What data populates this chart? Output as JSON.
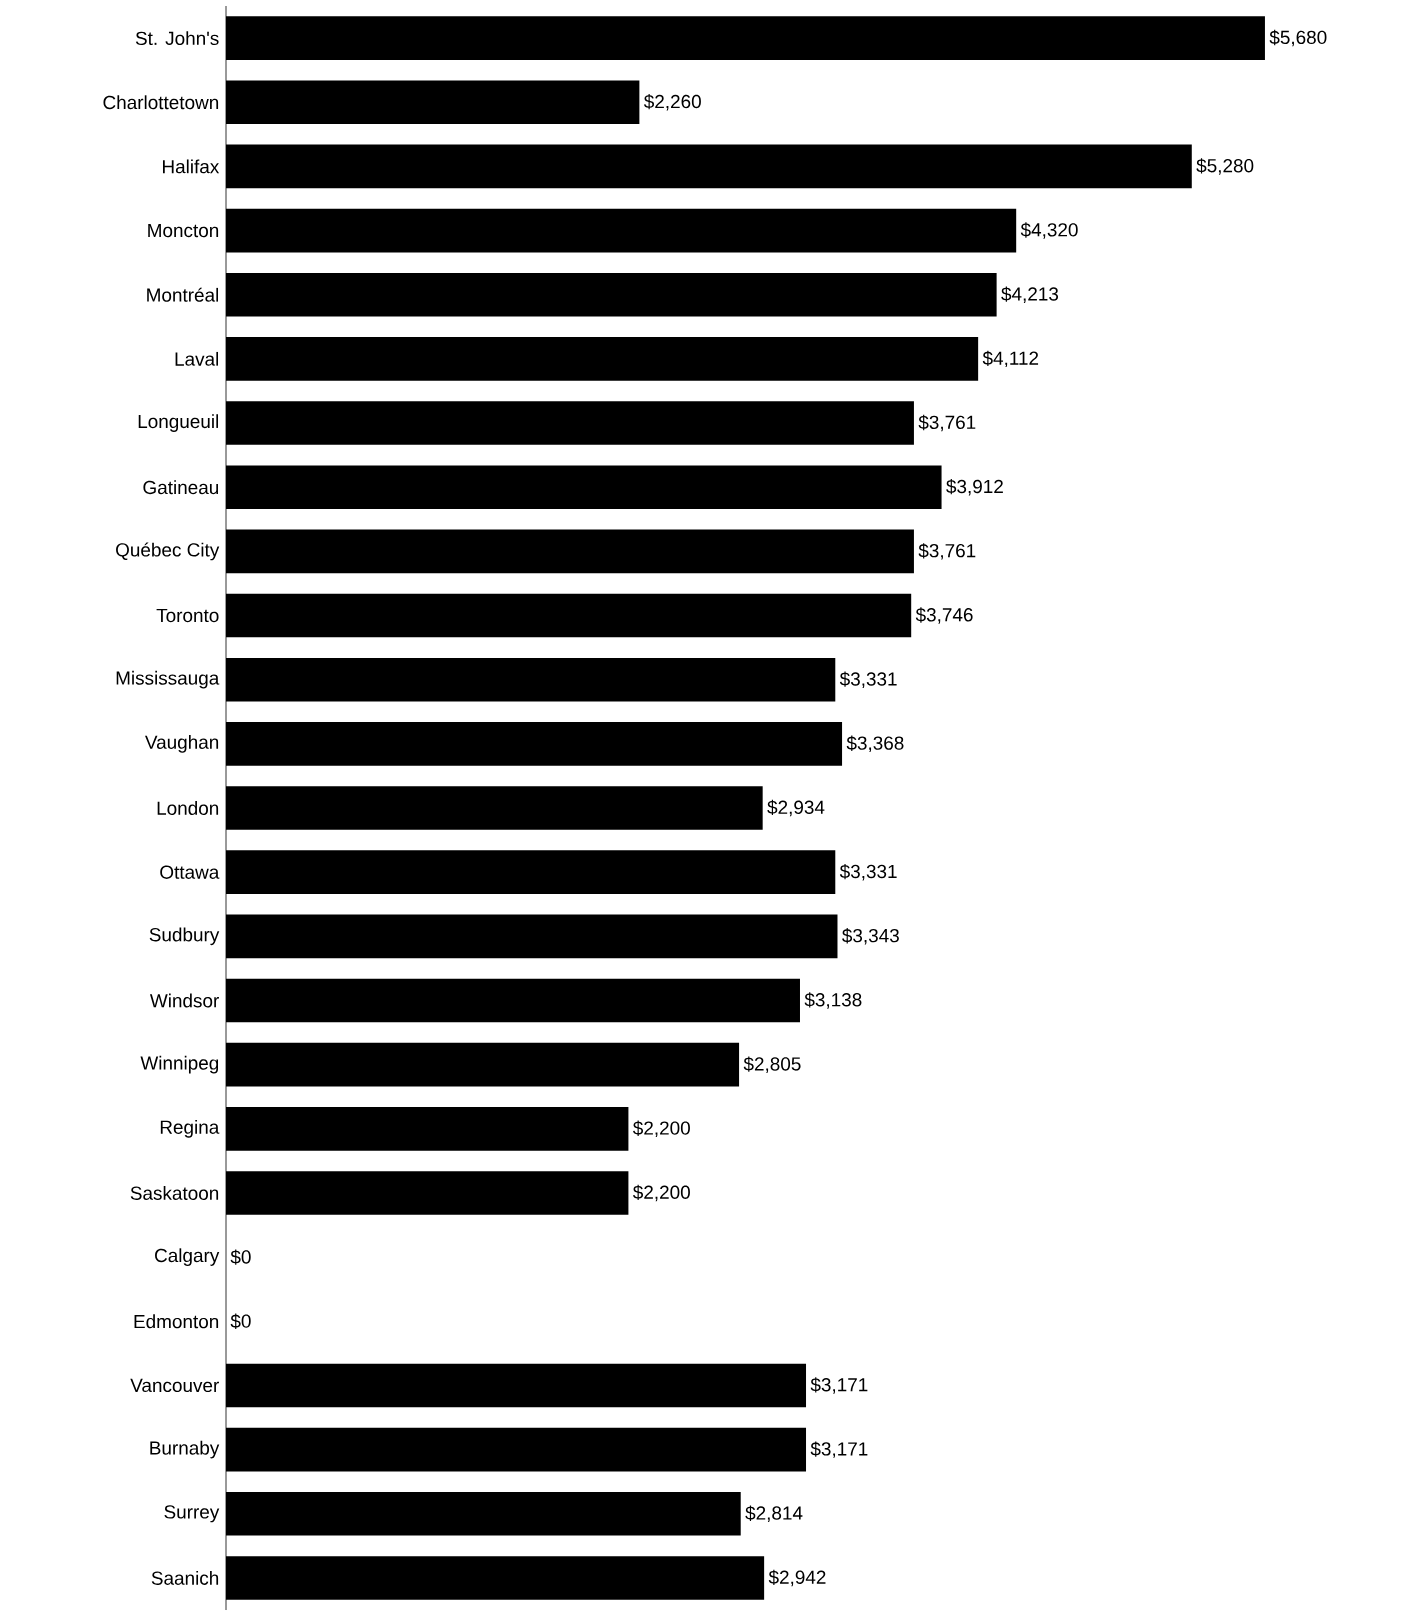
{
  "chart_data": {
    "type": "bar",
    "orientation": "horizontal",
    "color": "#000000",
    "categories": [
      "St. John's",
      "Charlottetown",
      "Halifax",
      "Moncton",
      "Montréal",
      "Laval",
      "Longueuil",
      "Gatineau",
      "Québec City",
      "Toronto",
      "Mississauga",
      "Vaughan",
      "London",
      "Ottawa",
      "Sudbury",
      "Windsor",
      "Winnipeg",
      "Regina",
      "Saskatoon",
      "Calgary",
      "Edmonton",
      "Vancouver",
      "Burnaby",
      "Surrey",
      "Saanich"
    ],
    "values": [
      5680,
      2260,
      5280,
      4320,
      4213,
      4112,
      3761,
      3912,
      3761,
      3746,
      3331,
      3368,
      2934,
      3331,
      3343,
      3138,
      2805,
      2200,
      2200,
      0,
      0,
      3171,
      3171,
      2814,
      2942
    ],
    "value_labels": [
      "$5,680",
      "$2,260",
      "$5,280",
      "$4,320",
      "$4,213",
      "$4,112",
      "$3,761",
      "$3,912",
      "$3,761",
      "$3,746",
      "$3,331",
      "$3,368",
      "$2,934",
      "$3,331",
      "$3,343",
      "$3,138",
      "$2,805",
      "$2,200",
      "$2,200",
      "$0",
      "$0",
      "$3,171",
      "$3,171",
      "$2,814",
      "$2,942"
    ]
  }
}
